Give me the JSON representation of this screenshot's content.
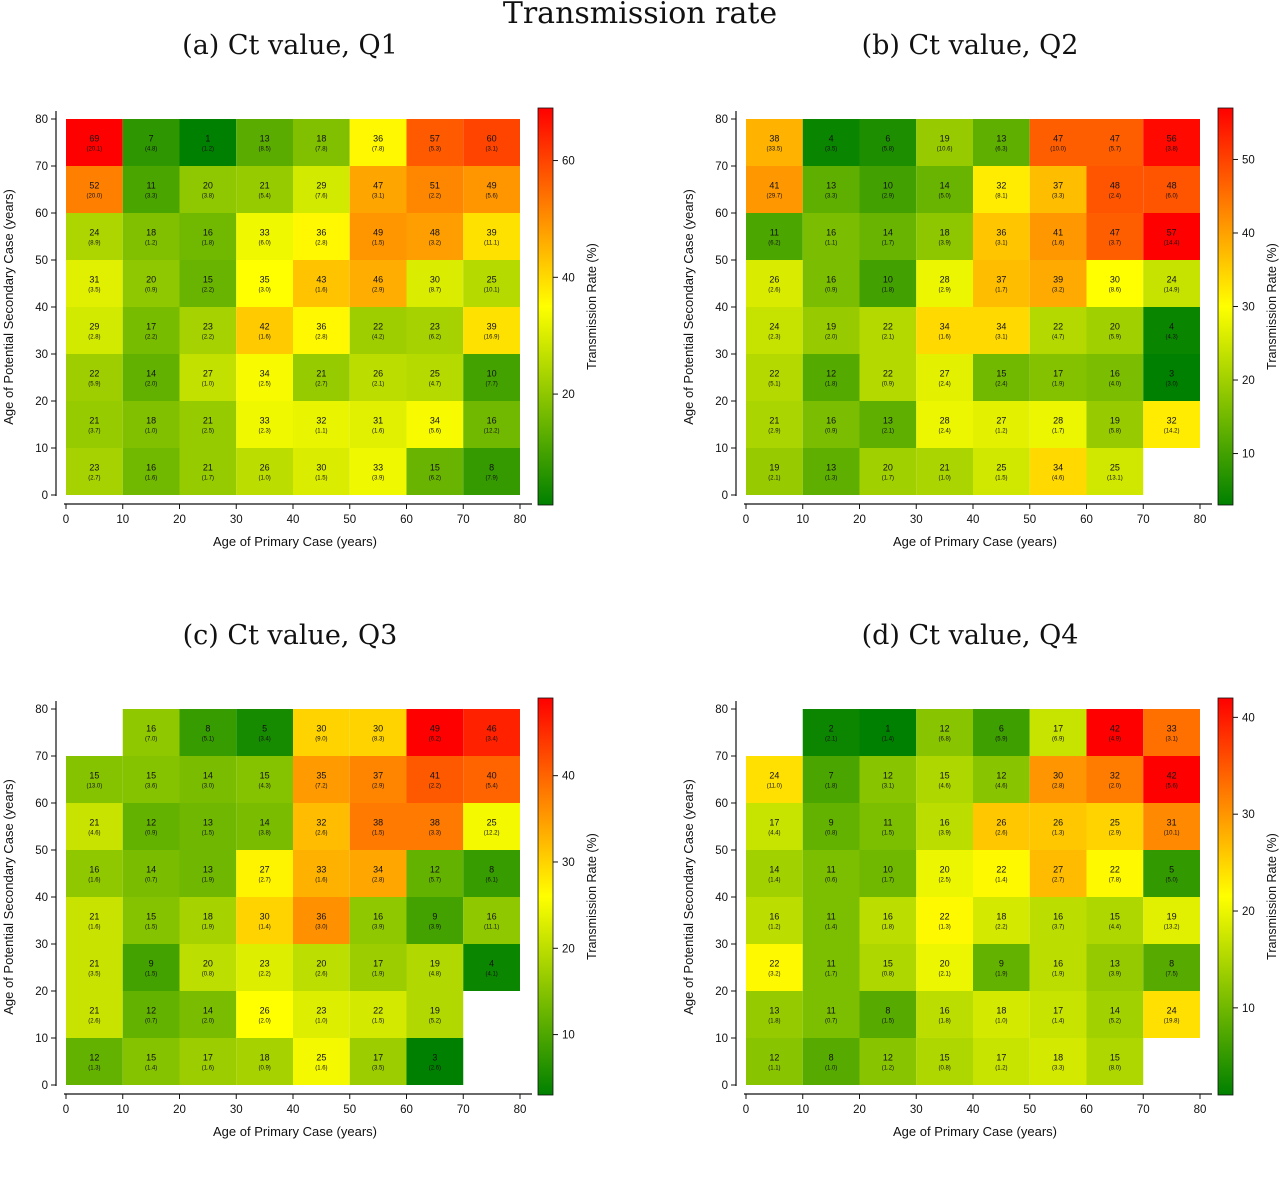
{
  "title": "Transmission rate",
  "chart_data": [
    {
      "type": "heatmap",
      "title": "(a) Ct value, Q1",
      "xlabel": "Age of Primary Case (years)",
      "ylabel": "Age of Potential Secondary Case (years)",
      "colorbar_label": "Transmission Rate (%)",
      "colorbar_range": [
        1,
        69
      ],
      "colorbar_ticks": [
        20,
        40,
        60
      ],
      "xticks": [
        0,
        10,
        20,
        30,
        40,
        50,
        60,
        70,
        80
      ],
      "yticks": [
        0,
        10,
        20,
        30,
        40,
        50,
        60,
        70,
        80
      ],
      "x_bins": [
        "0-10",
        "10-20",
        "20-30",
        "30-40",
        "40-50",
        "50-60",
        "60-70",
        "70-80"
      ],
      "y_bins_top_to_bottom": [
        "70-80",
        "60-70",
        "50-60",
        "40-50",
        "30-40",
        "20-30",
        "10-20",
        "0-10"
      ],
      "values": [
        [
          69,
          7,
          1,
          13,
          18,
          36,
          57,
          60
        ],
        [
          52,
          11,
          20,
          21,
          29,
          47,
          51,
          49
        ],
        [
          24,
          18,
          16,
          33,
          36,
          49,
          48,
          39
        ],
        [
          31,
          20,
          15,
          35,
          43,
          46,
          30,
          25
        ],
        [
          29,
          17,
          23,
          42,
          36,
          22,
          23,
          39
        ],
        [
          22,
          14,
          27,
          34,
          21,
          26,
          25,
          10
        ],
        [
          21,
          18,
          21,
          33,
          32,
          31,
          34,
          16
        ],
        [
          23,
          16,
          21,
          26,
          30,
          33,
          15,
          8
        ]
      ],
      "errors": [
        [
          "20.1",
          "4.8",
          "1.2",
          "8.5",
          "7.8",
          "7.8",
          "5.3",
          "3.1"
        ],
        [
          "20.0",
          "3.3",
          "3.8",
          "5.4",
          "7.6",
          "3.1",
          "2.2",
          "5.6"
        ],
        [
          "8.9",
          "1.2",
          "1.8",
          "6.0",
          "2.8",
          "1.5",
          "3.2",
          "11.1"
        ],
        [
          "3.5",
          "0.9",
          "2.2",
          "3.0",
          "1.6",
          "2.9",
          "8.7",
          "10.1"
        ],
        [
          "2.8",
          "2.2",
          "2.2",
          "1.6",
          "2.8",
          "4.2",
          "6.2",
          "16.9"
        ],
        [
          "5.9",
          "2.0",
          "1.0",
          "2.5",
          "2.7",
          "2.1",
          "4.7",
          "7.7"
        ],
        [
          "3.7",
          "1.0",
          "2.5",
          "2.3",
          "1.1",
          "1.6",
          "5.6",
          "12.2"
        ],
        [
          "2.7",
          "1.6",
          "1.7",
          "1.0",
          "1.5",
          "3.9",
          "6.2",
          "7.9"
        ]
      ]
    },
    {
      "type": "heatmap",
      "title": "(b) Ct value, Q2",
      "xlabel": "Age of Primary Case (years)",
      "ylabel": "Age of Potential Secondary Case (years)",
      "colorbar_label": "Transmission Rate (%)",
      "colorbar_range": [
        3,
        57
      ],
      "colorbar_ticks": [
        10,
        20,
        30,
        40,
        50
      ],
      "xticks": [
        0,
        10,
        20,
        30,
        40,
        50,
        60,
        70,
        80
      ],
      "yticks": [
        0,
        10,
        20,
        30,
        40,
        50,
        60,
        70,
        80
      ],
      "x_bins": [
        "0-10",
        "10-20",
        "20-30",
        "30-40",
        "40-50",
        "50-60",
        "60-70",
        "70-80"
      ],
      "y_bins_top_to_bottom": [
        "70-80",
        "60-70",
        "50-60",
        "40-50",
        "30-40",
        "20-30",
        "10-20",
        "0-10"
      ],
      "values": [
        [
          38,
          4,
          6,
          19,
          13,
          47,
          47,
          56
        ],
        [
          41,
          13,
          10,
          14,
          32,
          37,
          48,
          48
        ],
        [
          11,
          16,
          14,
          18,
          36,
          41,
          47,
          57
        ],
        [
          26,
          16,
          10,
          28,
          37,
          39,
          30,
          24
        ],
        [
          24,
          19,
          22,
          34,
          34,
          22,
          20,
          4
        ],
        [
          22,
          12,
          22,
          27,
          15,
          17,
          16,
          3
        ],
        [
          21,
          16,
          13,
          28,
          27,
          28,
          19,
          32
        ],
        [
          19,
          13,
          20,
          21,
          25,
          34,
          25,
          null
        ]
      ],
      "errors": [
        [
          "33.5",
          "3.5",
          "5.8",
          "10.6",
          "6.3",
          "10.0",
          "5.7",
          "3.8"
        ],
        [
          "29.7",
          "3.3",
          "2.9",
          "5.0",
          "8.1",
          "3.3",
          "2.4",
          "6.0"
        ],
        [
          "6.2",
          "1.1",
          "1.7",
          "3.9",
          "3.1",
          "1.6",
          "3.7",
          "14.4"
        ],
        [
          "2.6",
          "0.9",
          "1.8",
          "2.9",
          "1.7",
          "3.2",
          "8.6",
          "14.9"
        ],
        [
          "2.3",
          "2.0",
          "2.1",
          "1.6",
          "3.1",
          "4.7",
          "5.9",
          "4.3"
        ],
        [
          "5.1",
          "1.8",
          "0.9",
          "2.4",
          "2.4",
          "1.9",
          "4.0",
          "3.0"
        ],
        [
          "2.9",
          "0.9",
          "2.1",
          "2.4",
          "1.2",
          "1.7",
          "5.8",
          "14.2"
        ],
        [
          "2.1",
          "1.3",
          "1.7",
          "1.0",
          "1.5",
          "4.6",
          "13.1",
          null
        ]
      ]
    },
    {
      "type": "heatmap",
      "title": "(c) Ct value, Q3",
      "xlabel": "Age of Primary Case (years)",
      "ylabel": "Age of Potential Secondary Case (years)",
      "colorbar_label": "Transmission Rate (%)",
      "colorbar_range": [
        3,
        49
      ],
      "colorbar_ticks": [
        10,
        20,
        30,
        40
      ],
      "xticks": [
        0,
        10,
        20,
        30,
        40,
        50,
        60,
        70,
        80
      ],
      "yticks": [
        0,
        10,
        20,
        30,
        40,
        50,
        60,
        70,
        80
      ],
      "x_bins": [
        "0-10",
        "10-20",
        "20-30",
        "30-40",
        "40-50",
        "50-60",
        "60-70",
        "70-80"
      ],
      "y_bins_top_to_bottom": [
        "70-80",
        "60-70",
        "50-60",
        "40-50",
        "30-40",
        "20-30",
        "10-20",
        "0-10"
      ],
      "values": [
        [
          null,
          16,
          8,
          5,
          30,
          30,
          49,
          46
        ],
        [
          15,
          15,
          14,
          15,
          35,
          37,
          41,
          40
        ],
        [
          21,
          12,
          13,
          14,
          32,
          38,
          38,
          25
        ],
        [
          16,
          14,
          13,
          27,
          33,
          34,
          12,
          8
        ],
        [
          21,
          15,
          18,
          30,
          36,
          16,
          9,
          16
        ],
        [
          21,
          9,
          20,
          23,
          20,
          17,
          19,
          4
        ],
        [
          21,
          12,
          14,
          26,
          23,
          22,
          19,
          null
        ],
        [
          12,
          15,
          17,
          18,
          25,
          17,
          3,
          null
        ]
      ],
      "errors": [
        [
          null,
          "7.0",
          "5.1",
          "3.4",
          "9.0",
          "8.3",
          "6.2",
          "3.4"
        ],
        [
          "13.0",
          "3.6",
          "3.0",
          "4.3",
          "7.2",
          "2.9",
          "2.2",
          "5.4"
        ],
        [
          "4.6",
          "0.9",
          "1.5",
          "3.8",
          "2.6",
          "1.5",
          "3.3",
          "12.2"
        ],
        [
          "1.6",
          "0.7",
          "1.9",
          "2.7",
          "1.6",
          "2.8",
          "5.7",
          "6.1"
        ],
        [
          "1.6",
          "1.5",
          "1.9",
          "1.4",
          "3.0",
          "3.9",
          "3.9",
          "11.1"
        ],
        [
          "3.5",
          "1.5",
          "0.8",
          "2.2",
          "2.6",
          "1.9",
          "4.8",
          "4.1"
        ],
        [
          "2.6",
          "0.7",
          "2.0",
          "2.0",
          "1.0",
          "1.5",
          "5.2",
          null
        ],
        [
          "1.3",
          "1.4",
          "1.6",
          "0.9",
          "1.6",
          "3.5",
          "2.6",
          null
        ]
      ]
    },
    {
      "type": "heatmap",
      "title": "(d) Ct value, Q4",
      "xlabel": "Age of Primary Case (years)",
      "ylabel": "Age of Potential Secondary Case (years)",
      "colorbar_label": "Transmission Rate (%)",
      "colorbar_range": [
        1,
        42
      ],
      "colorbar_ticks": [
        10,
        20,
        30,
        40
      ],
      "xticks": [
        0,
        10,
        20,
        30,
        40,
        50,
        60,
        70,
        80
      ],
      "yticks": [
        0,
        10,
        20,
        30,
        40,
        50,
        60,
        70,
        80
      ],
      "x_bins": [
        "0-10",
        "10-20",
        "20-30",
        "30-40",
        "40-50",
        "50-60",
        "60-70",
        "70-80"
      ],
      "y_bins_top_to_bottom": [
        "70-80",
        "60-70",
        "50-60",
        "40-50",
        "30-40",
        "20-30",
        "10-20",
        "0-10"
      ],
      "values": [
        [
          null,
          2,
          1,
          12,
          6,
          17,
          42,
          33
        ],
        [
          24,
          7,
          12,
          15,
          12,
          30,
          32,
          42
        ],
        [
          17,
          9,
          11,
          16,
          26,
          26,
          25,
          31
        ],
        [
          14,
          11,
          10,
          20,
          22,
          27,
          22,
          5
        ],
        [
          16,
          11,
          16,
          22,
          18,
          16,
          15,
          19
        ],
        [
          22,
          11,
          15,
          20,
          9,
          16,
          13,
          8
        ],
        [
          13,
          11,
          8,
          16,
          18,
          17,
          14,
          24
        ],
        [
          12,
          8,
          12,
          15,
          17,
          18,
          15,
          null
        ]
      ],
      "errors": [
        [
          null,
          "2.1",
          "1.4",
          "6.8",
          "5.9",
          "6.9",
          "4.9",
          "3.1"
        ],
        [
          "11.0",
          "1.8",
          "3.1",
          "4.6",
          "4.6",
          "2.8",
          "2.0",
          "5.6"
        ],
        [
          "4.4",
          "0.8",
          "1.5",
          "3.9",
          "2.6",
          "1.3",
          "2.9",
          "10.1"
        ],
        [
          "1.4",
          "0.6",
          "1.7",
          "2.5",
          "1.4",
          "2.7",
          "7.8",
          "5.0"
        ],
        [
          "1.2",
          "1.4",
          "1.8",
          "1.3",
          "2.2",
          "3.7",
          "4.4",
          "13.2"
        ],
        [
          "3.2",
          "1.7",
          "0.8",
          "2.1",
          "1.9",
          "1.9",
          "3.9",
          "7.5"
        ],
        [
          "1.8",
          "0.7",
          "1.5",
          "1.8",
          "1.0",
          "1.4",
          "5.2",
          "19.8"
        ],
        [
          "1.1",
          "1.0",
          "1.2",
          "0.8",
          "1.2",
          "3.3",
          "8.0",
          null
        ]
      ]
    }
  ]
}
